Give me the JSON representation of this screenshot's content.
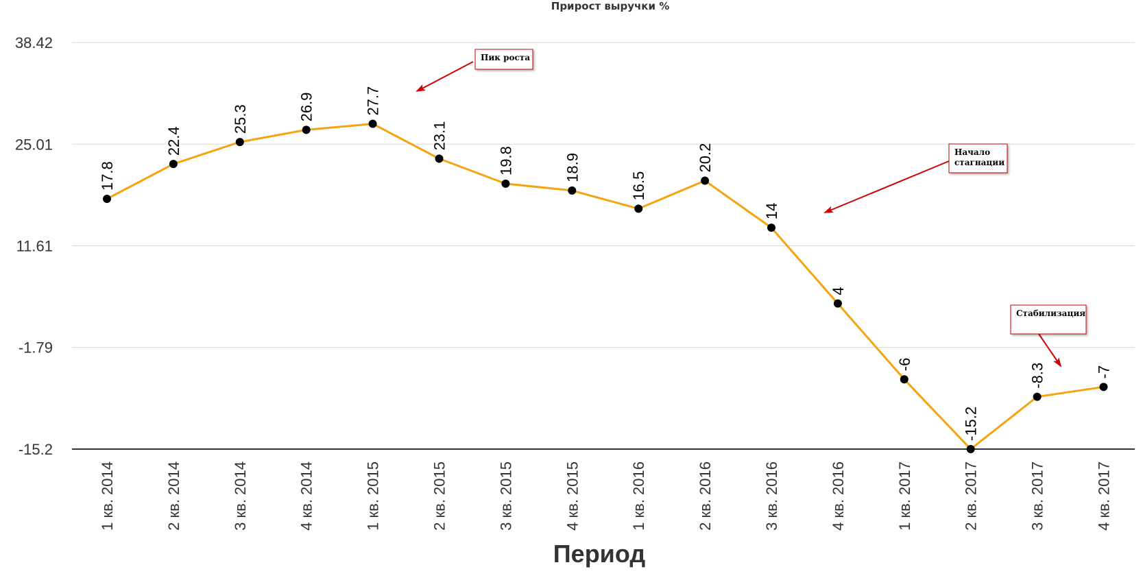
{
  "chart_data": {
    "type": "line",
    "title": "Прирост выручки %",
    "xlabel": "Период",
    "ylabel": "",
    "categories": [
      "1 кв. 2014",
      "2 кв. 2014",
      "3 кв. 2014",
      "4 кв. 2014",
      "1 кв. 2015",
      "2 кв. 2015",
      "3 кв. 2015",
      "4 кв. 2015",
      "1 кв. 2016",
      "2 кв. 2016",
      "3 кв. 2016",
      "4 кв. 2016",
      "1 кв. 2017",
      "2 кв. 2017",
      "3 кв. 2017",
      "4 кв. 2017"
    ],
    "series": [
      {
        "values": [
          17.8,
          22.4,
          25.3,
          26.9,
          27.7,
          23.1,
          19.8,
          18.9,
          16.5,
          20.2,
          14,
          4,
          -6,
          -15.2,
          -8.3,
          -7
        ],
        "labels": [
          "17.8",
          "22.4",
          "25.3",
          "26.9",
          "27.7",
          "23.1",
          "19.8",
          "18.9",
          "16.5",
          "20.2",
          "14",
          "4",
          "-6",
          "-15.2",
          "-8.3",
          "-7"
        ]
      }
    ],
    "yticks": [
      38.42,
      25.01,
      11.61,
      -1.79,
      -15.2
    ],
    "ytick_labels": [
      "38.42",
      "25.01",
      "11.61",
      "-1.79",
      "-15.2"
    ],
    "ylim": [
      -15.2,
      38.42
    ],
    "grid": true,
    "legend": "none",
    "line_color": "#F5A30F",
    "marker_color": "#000000",
    "annotations": [
      {
        "name": "peak",
        "lines": [
          "Пик роста"
        ],
        "target_index": 4
      },
      {
        "name": "stagnation",
        "lines": [
          "Начало",
          "стагнации"
        ],
        "target_index": 10
      },
      {
        "name": "stabilization",
        "lines": [
          "Стабилизация"
        ],
        "target_index": 14
      }
    ]
  },
  "colors": {
    "grid": "#d9d9d9",
    "baseline": "#333333",
    "arrow": "#d40000",
    "note_border": "#c00000"
  }
}
